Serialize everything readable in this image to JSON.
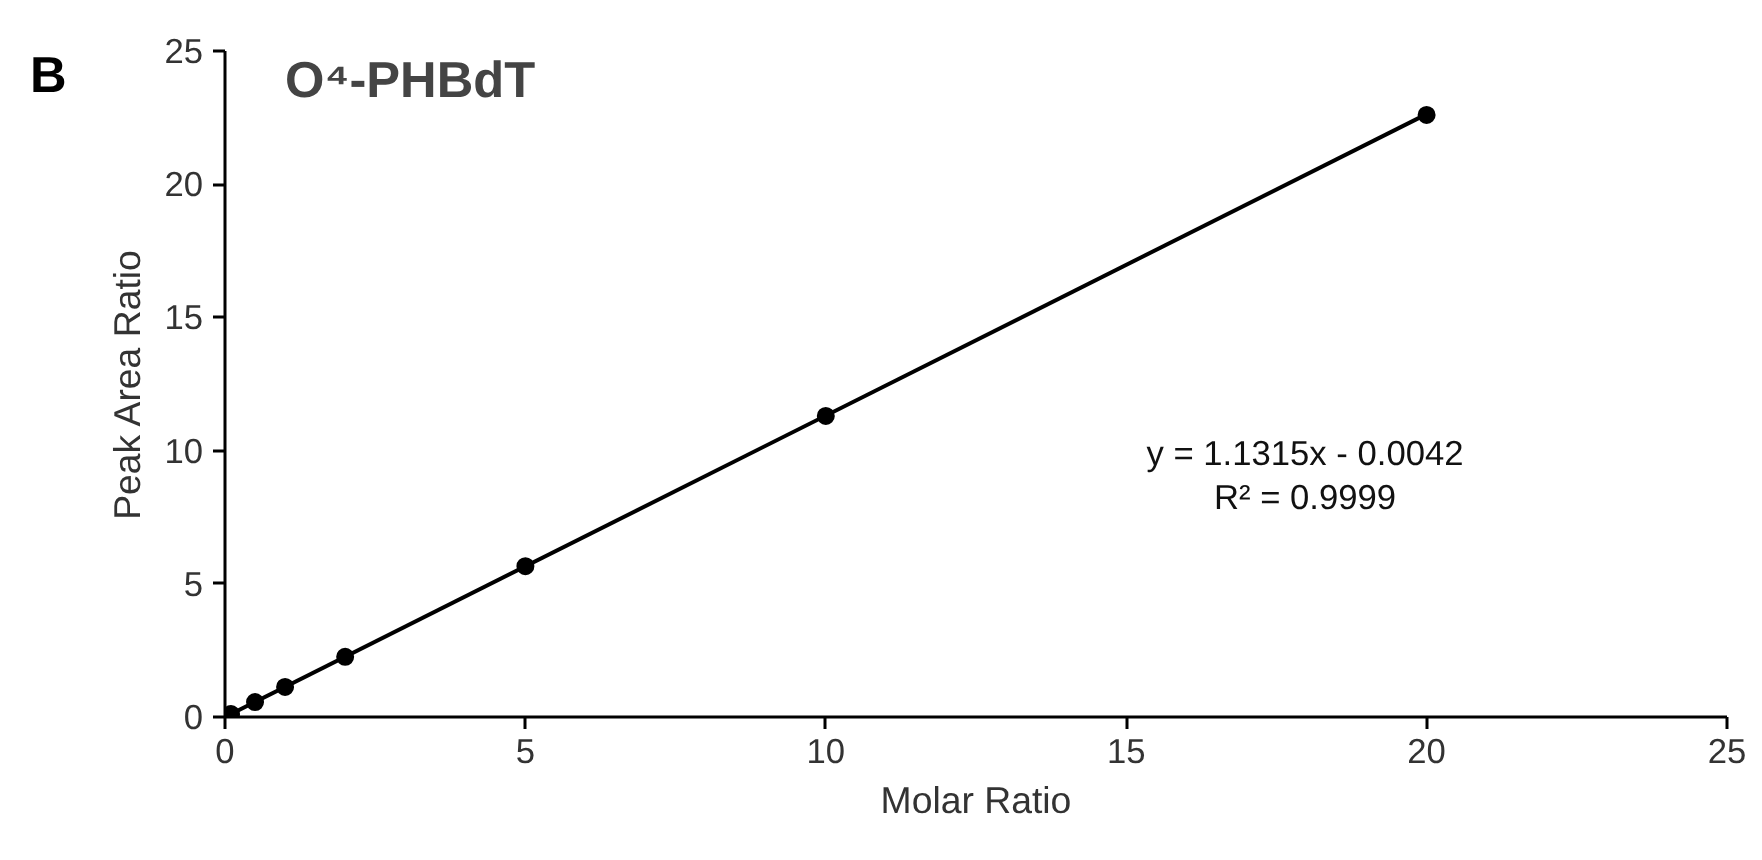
{
  "chart_data": {
    "type": "scatter",
    "title": "O⁴-PHBdT",
    "xlabel": "Molar Ratio",
    "ylabel": "Peak Area Ratio",
    "annotations": [
      "B",
      "y = 1.1315x - 0.0042",
      "R² = 0.9999"
    ],
    "xlim": [
      0,
      25
    ],
    "xticks": [
      0,
      5,
      10,
      15,
      20,
      25
    ],
    "ylim": [
      0,
      25
    ],
    "yticks": [
      0,
      5,
      10,
      15,
      20,
      25
    ],
    "grid": false,
    "series": [
      {
        "type": "scatter",
        "color": "#000000",
        "marker": "circle",
        "x": [
          0.1,
          0.5,
          1,
          2,
          5,
          10,
          20
        ],
        "values": [
          0.11,
          0.56,
          1.13,
          2.26,
          5.66,
          11.3,
          22.6
        ]
      },
      {
        "type": "line",
        "color": "#000000",
        "marker": "none",
        "line_style": "solid",
        "x": [
          0.1,
          20
        ],
        "values": [
          0.11,
          22.63
        ]
      }
    ]
  }
}
